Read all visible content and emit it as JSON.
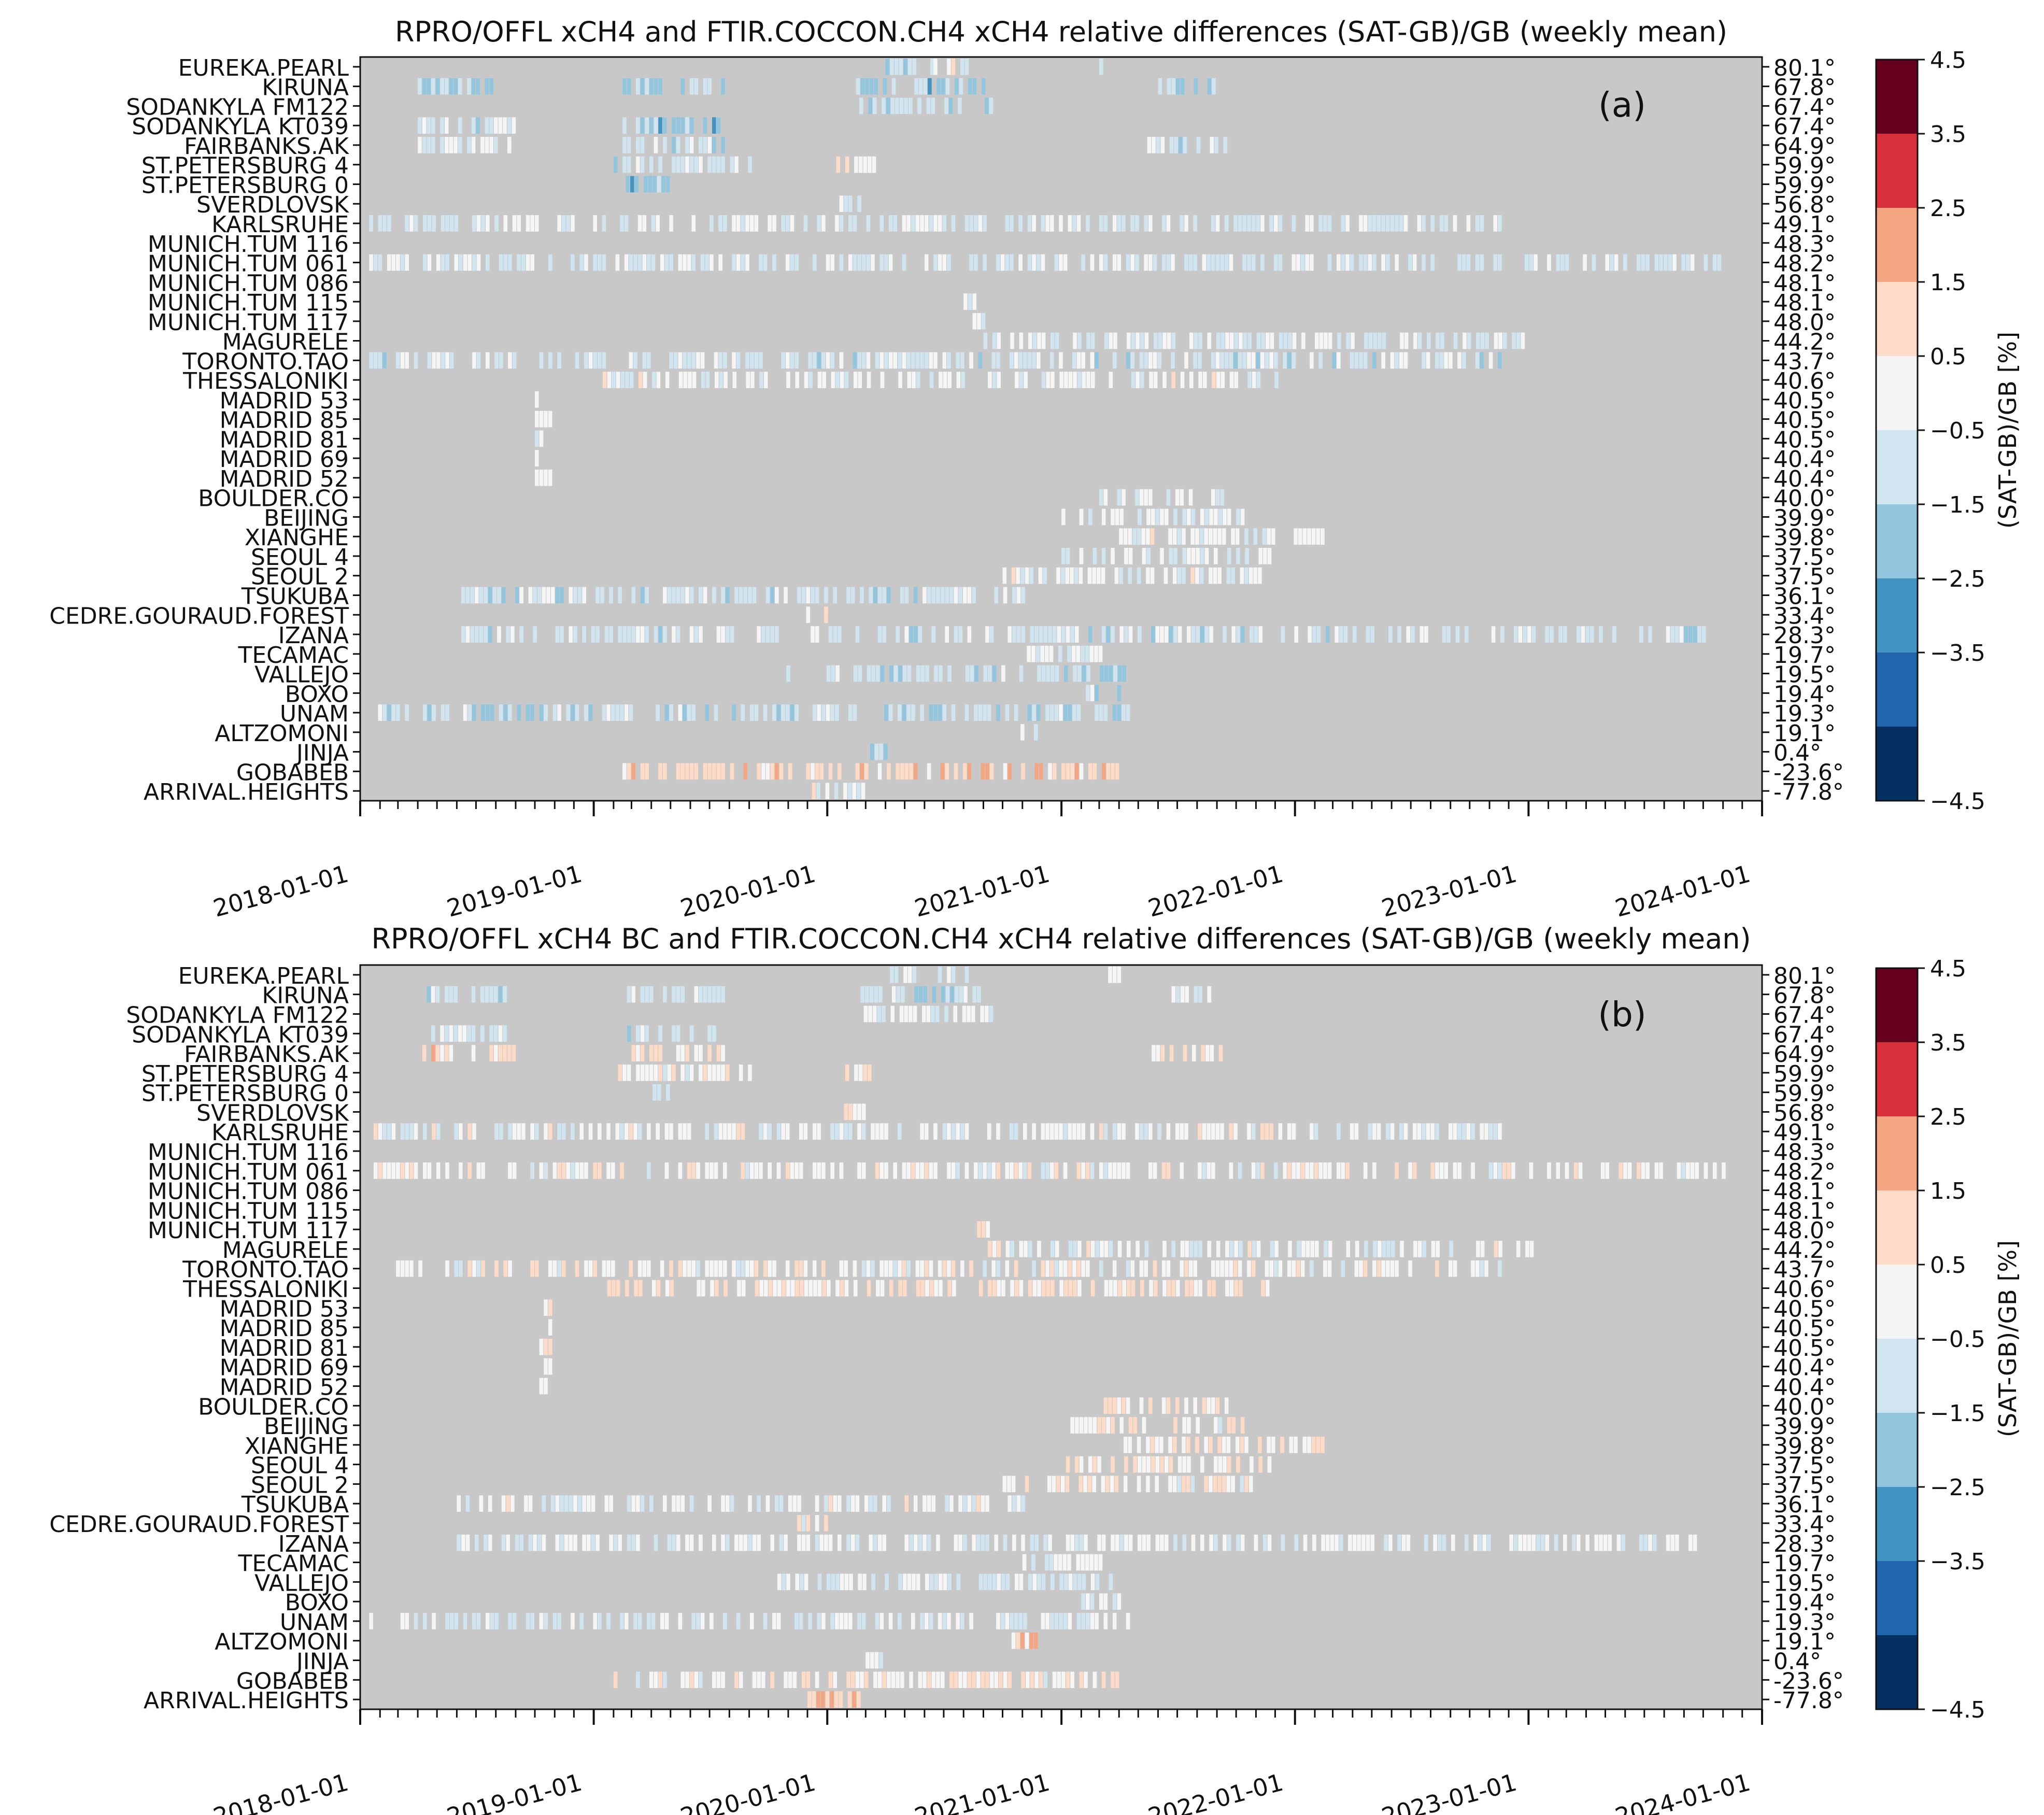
{
  "chart_data": [
    {
      "type": "heatmap",
      "title": "RPRO/OFFL xCH4 and FTIR.COCCON.CH4 xCH4 relative differences (SAT-GB)/GB (weekly mean)",
      "panel_label": "(a)",
      "x_type": "date",
      "xlim": [
        "2018-01-01",
        "2024-01-01"
      ],
      "x_tick_labels": [
        "2018-01-01",
        "2019-01-01",
        "2020-01-01",
        "2021-01-01",
        "2022-01-01",
        "2023-01-01",
        "2024-01-01"
      ],
      "colorbar": {
        "label": "(SAT-GB)/GB [%]",
        "range": [
          -4.5,
          4.5
        ],
        "ticks": [
          "4.5",
          "3.5",
          "2.5",
          "1.5",
          "0.5",
          "−0.5",
          "−1.5",
          "−2.5",
          "−3.5",
          "−4.5"
        ]
      },
      "background_color": "#c8c8c8",
      "stations": [
        {
          "name": "EUREKA.PEARL",
          "lat": "80.1°",
          "runs": [
            [
              "2020-04-01",
              "2020-06-15",
              -1.5
            ],
            [
              "2020-06-15",
              "2020-08-15",
              -0.2
            ],
            [
              "2021-03-01",
              "2021-04-01",
              -0.7
            ]
          ]
        },
        {
          "name": "KIRUNA",
          "lat": "67.8°",
          "runs": [
            [
              "2018-04-01",
              "2018-08-15",
              -1.3
            ],
            [
              "2019-02-15",
              "2019-07-20",
              -1.6
            ],
            [
              "2020-02-15",
              "2020-09-01",
              -1.9
            ],
            [
              "2021-06-01",
              "2021-08-25",
              -1.3
            ]
          ]
        },
        {
          "name": "SODANKYLA FM122",
          "lat": "67.4°",
          "runs": [
            [
              "2020-02-20",
              "2020-09-15",
              -1.4
            ]
          ]
        },
        {
          "name": "SODANKYLA KT039",
          "lat": "67.4°",
          "runs": [
            [
              "2018-04-01",
              "2018-09-01",
              -0.8
            ],
            [
              "2019-02-15",
              "2019-07-15",
              -1.9
            ]
          ]
        },
        {
          "name": "FAIRBANKS.AK",
          "lat": "64.9°",
          "runs": [
            [
              "2018-04-01",
              "2018-09-01",
              -0.4
            ],
            [
              "2019-02-15",
              "2019-07-20",
              -1.0
            ],
            [
              "2021-05-15",
              "2021-09-15",
              -0.9
            ]
          ]
        },
        {
          "name": "ST.PETERSBURG 4",
          "lat": "59.9°",
          "runs": [
            [
              "2019-02-01",
              "2019-09-01",
              -0.8
            ],
            [
              "2020-01-15",
              "2020-03-15",
              0.3
            ]
          ]
        },
        {
          "name": "ST.PETERSBURG 0",
          "lat": "59.9°",
          "runs": [
            [
              "2019-02-20",
              "2019-05-01",
              -1.8
            ]
          ]
        },
        {
          "name": "SVERDLOVSK",
          "lat": "56.8°",
          "runs": [
            [
              "2020-01-20",
              "2020-03-01",
              -0.8
            ]
          ]
        },
        {
          "name": "KARLSRUHE",
          "lat": "49.1°",
          "runs": [
            [
              "2018-01-15",
              "2022-11-15",
              -0.6
            ]
          ]
        },
        {
          "name": "MUNICH.TUM 116",
          "lat": "48.3°",
          "runs": []
        },
        {
          "name": "MUNICH.TUM 061",
          "lat": "48.2°",
          "runs": [
            [
              "2018-01-15",
              "2023-11-01",
              -0.7
            ]
          ]
        },
        {
          "name": "MUNICH.TUM 086",
          "lat": "48.1°",
          "runs": []
        },
        {
          "name": "MUNICH.TUM 115",
          "lat": "48.1°",
          "runs": [
            [
              "2020-08-01",
              "2020-08-25",
              -0.3
            ]
          ]
        },
        {
          "name": "MUNICH.TUM 117",
          "lat": "48.0°",
          "runs": [
            [
              "2020-08-15",
              "2020-09-15",
              -0.2
            ]
          ]
        },
        {
          "name": "MAGURELE",
          "lat": "44.2°",
          "runs": [
            [
              "2020-09-01",
              "2023-01-15",
              -0.6
            ]
          ]
        },
        {
          "name": "TORONTO.TAO",
          "lat": "43.7°",
          "runs": [
            [
              "2018-01-15",
              "2022-11-15",
              -0.8
            ]
          ]
        },
        {
          "name": "THESSALONIKI",
          "lat": "40.6°",
          "runs": [
            [
              "2019-01-15",
              "2021-12-01",
              -0.2
            ]
          ]
        },
        {
          "name": "MADRID 53",
          "lat": "40.5°",
          "runs": [
            [
              "2018-10-01",
              "2018-10-25",
              -0.1
            ]
          ]
        },
        {
          "name": "MADRID 85",
          "lat": "40.5°",
          "runs": [
            [
              "2018-10-01",
              "2018-10-25",
              -0.1
            ]
          ]
        },
        {
          "name": "MADRID 81",
          "lat": "40.5°",
          "runs": [
            [
              "2018-10-01",
              "2018-10-25",
              -0.1
            ]
          ]
        },
        {
          "name": "MADRID 69",
          "lat": "40.4°",
          "runs": [
            [
              "2018-10-01",
              "2018-10-25",
              -0.1
            ]
          ]
        },
        {
          "name": "MADRID 52",
          "lat": "40.4°",
          "runs": [
            [
              "2018-10-01",
              "2018-10-25",
              -0.1
            ]
          ]
        },
        {
          "name": "BOULDER.CO",
          "lat": "40.0°",
          "runs": [
            [
              "2021-03-01",
              "2021-09-15",
              -0.3
            ]
          ]
        },
        {
          "name": "BEIJING",
          "lat": "39.9°",
          "runs": [
            [
              "2021-01-01",
              "2021-10-15",
              -0.4
            ]
          ]
        },
        {
          "name": "XIANGHE",
          "lat": "39.8°",
          "runs": [
            [
              "2021-04-01",
              "2022-02-15",
              -0.1
            ]
          ]
        },
        {
          "name": "SEOUL 4",
          "lat": "37.5°",
          "runs": [
            [
              "2021-01-01",
              "2021-11-20",
              -0.3
            ]
          ]
        },
        {
          "name": "SEOUL 2",
          "lat": "37.5°",
          "runs": [
            [
              "2020-10-01",
              "2021-11-15",
              -0.2
            ]
          ]
        },
        {
          "name": "TSUKUBA",
          "lat": "36.1°",
          "runs": [
            [
              "2018-06-01",
              "2020-11-01",
              -0.9
            ]
          ]
        },
        {
          "name": "CEDRE.GOURAUD.FOREST",
          "lat": "33.4°",
          "runs": [
            [
              "2019-11-15",
              "2019-12-31",
              0.6
            ]
          ]
        },
        {
          "name": "IZANA",
          "lat": "28.3°",
          "runs": [
            [
              "2018-06-01",
              "2023-10-01",
              -0.9
            ]
          ]
        },
        {
          "name": "TECAMAC",
          "lat": "19.7°",
          "runs": [
            [
              "2020-11-01",
              "2021-03-01",
              -0.3
            ]
          ]
        },
        {
          "name": "VALLEJO",
          "lat": "19.5°",
          "runs": [
            [
              "2019-10-15",
              "2021-04-15",
              -1.1
            ]
          ]
        },
        {
          "name": "BOXO",
          "lat": "19.4°",
          "runs": [
            [
              "2021-02-01",
              "2021-04-01",
              -0.8
            ]
          ]
        },
        {
          "name": "UNAM",
          "lat": "19.3°",
          "runs": [
            [
              "2018-01-15",
              "2021-04-15",
              -1.2
            ]
          ]
        },
        {
          "name": "ALTZOMONI",
          "lat": "19.1°",
          "runs": [
            [
              "2020-10-15",
              "2020-11-20",
              -0.1
            ]
          ]
        },
        {
          "name": "JINJA",
          "lat": "0.4°",
          "runs": [
            [
              "2020-03-01",
              "2020-04-01",
              -1.8
            ]
          ]
        },
        {
          "name": "GOBABEB",
          "lat": "-23.6°",
          "runs": [
            [
              "2019-02-01",
              "2021-04-01",
              1.1
            ]
          ]
        },
        {
          "name": "ARRIVAL.HEIGHTS",
          "lat": "-77.8°",
          "runs": [
            [
              "2019-12-01",
              "2020-03-01",
              -0.1
            ]
          ]
        }
      ]
    },
    {
      "type": "heatmap",
      "title": "RPRO/OFFL xCH4 BC and FTIR.COCCON.CH4 xCH4 relative differences (SAT-GB)/GB (weekly mean)",
      "panel_label": "(b)",
      "x_type": "date",
      "xlim": [
        "2018-01-01",
        "2024-01-01"
      ],
      "x_tick_labels": [
        "2018-01-01",
        "2019-01-01",
        "2020-01-01",
        "2021-01-01",
        "2022-01-01",
        "2023-01-01",
        "2024-01-01"
      ],
      "colorbar": {
        "label": "(SAT-GB)/GB [%]",
        "range": [
          -4.5,
          4.5
        ],
        "ticks": [
          "4.5",
          "3.5",
          "2.5",
          "1.5",
          "0.5",
          "−0.5",
          "−1.5",
          "−2.5",
          "−3.5",
          "−4.5"
        ]
      },
      "background_color": "#c8c8c8",
      "stations": [
        {
          "name": "EUREKA.PEARL",
          "lat": "80.1°",
          "runs": [
            [
              "2020-04-01",
              "2020-06-15",
              -0.7
            ],
            [
              "2020-06-15",
              "2020-08-15",
              -0.1
            ],
            [
              "2021-03-01",
              "2021-04-01",
              -0.2
            ]
          ]
        },
        {
          "name": "KIRUNA",
          "lat": "67.8°",
          "runs": [
            [
              "2018-04-01",
              "2018-08-15",
              -1.0
            ],
            [
              "2019-02-15",
              "2019-07-20",
              -0.7
            ],
            [
              "2020-02-15",
              "2020-09-01",
              -1.0
            ],
            [
              "2021-06-01",
              "2021-08-25",
              -0.9
            ]
          ]
        },
        {
          "name": "SODANKYLA FM122",
          "lat": "67.4°",
          "runs": [
            [
              "2020-02-20",
              "2020-09-15",
              -0.4
            ]
          ]
        },
        {
          "name": "SODANKYLA KT039",
          "lat": "67.4°",
          "runs": [
            [
              "2018-04-01",
              "2018-09-01",
              -0.3
            ],
            [
              "2019-02-15",
              "2019-07-15",
              -0.9
            ]
          ]
        },
        {
          "name": "FAIRBANKS.AK",
          "lat": "64.9°",
          "runs": [
            [
              "2018-04-01",
              "2018-09-01",
              0.9
            ],
            [
              "2019-02-15",
              "2019-07-20",
              0.6
            ],
            [
              "2021-05-15",
              "2021-09-15",
              0.5
            ]
          ]
        },
        {
          "name": "ST.PETERSBURG 4",
          "lat": "59.9°",
          "runs": [
            [
              "2019-02-01",
              "2019-09-01",
              0.2
            ],
            [
              "2020-01-15",
              "2020-03-15",
              0.5
            ]
          ]
        },
        {
          "name": "ST.PETERSBURG 0",
          "lat": "59.9°",
          "runs": [
            [
              "2019-02-20",
              "2019-05-01",
              -0.6
            ]
          ]
        },
        {
          "name": "SVERDLOVSK",
          "lat": "56.8°",
          "runs": [
            [
              "2020-01-20",
              "2020-03-01",
              0.4
            ]
          ]
        },
        {
          "name": "KARLSRUHE",
          "lat": "49.1°",
          "runs": [
            [
              "2018-01-15",
              "2022-11-15",
              -0.2
            ]
          ]
        },
        {
          "name": "MUNICH.TUM 116",
          "lat": "48.3°",
          "runs": []
        },
        {
          "name": "MUNICH.TUM 061",
          "lat": "48.2°",
          "runs": [
            [
              "2018-01-15",
              "2023-11-01",
              0.1
            ]
          ]
        },
        {
          "name": "MUNICH.TUM 086",
          "lat": "48.1°",
          "runs": []
        },
        {
          "name": "MUNICH.TUM 115",
          "lat": "48.1°",
          "runs": [
            [
              "2020-08-01",
              "2020-08-25",
              0.3
            ]
          ]
        },
        {
          "name": "MUNICH.TUM 117",
          "lat": "48.0°",
          "runs": [
            [
              "2020-08-15",
              "2020-09-15",
              0.4
            ]
          ]
        },
        {
          "name": "MAGURELE",
          "lat": "44.2°",
          "runs": [
            [
              "2020-09-01",
              "2023-01-15",
              -0.2
            ]
          ]
        },
        {
          "name": "TORONTO.TAO",
          "lat": "43.7°",
          "runs": [
            [
              "2018-01-15",
              "2022-11-15",
              0.1
            ]
          ]
        },
        {
          "name": "THESSALONIKI",
          "lat": "40.6°",
          "runs": [
            [
              "2019-01-15",
              "2021-12-01",
              0.5
            ]
          ]
        },
        {
          "name": "MADRID 53",
          "lat": "40.5°",
          "runs": [
            [
              "2018-10-01",
              "2018-10-25",
              0.8
            ]
          ]
        },
        {
          "name": "MADRID 85",
          "lat": "40.5°",
          "runs": [
            [
              "2018-10-01",
              "2018-10-25",
              0.2
            ]
          ]
        },
        {
          "name": "MADRID 81",
          "lat": "40.5°",
          "runs": [
            [
              "2018-10-01",
              "2018-10-25",
              0.2
            ]
          ]
        },
        {
          "name": "MADRID 69",
          "lat": "40.4°",
          "runs": [
            [
              "2018-10-01",
              "2018-10-25",
              0.2
            ]
          ]
        },
        {
          "name": "MADRID 52",
          "lat": "40.4°",
          "runs": [
            [
              "2018-10-01",
              "2018-10-25",
              0.2
            ]
          ]
        },
        {
          "name": "BOULDER.CO",
          "lat": "40.0°",
          "runs": [
            [
              "2021-03-01",
              "2021-09-15",
              0.4
            ]
          ]
        },
        {
          "name": "BEIJING",
          "lat": "39.9°",
          "runs": [
            [
              "2021-01-01",
              "2021-10-15",
              0.2
            ]
          ]
        },
        {
          "name": "XIANGHE",
          "lat": "39.8°",
          "runs": [
            [
              "2021-04-01",
              "2022-02-15",
              0.4
            ]
          ]
        },
        {
          "name": "SEOUL 4",
          "lat": "37.5°",
          "runs": [
            [
              "2021-01-01",
              "2021-11-20",
              0.3
            ]
          ]
        },
        {
          "name": "SEOUL 2",
          "lat": "37.5°",
          "runs": [
            [
              "2020-10-01",
              "2021-11-15",
              0.2
            ]
          ]
        },
        {
          "name": "TSUKUBA",
          "lat": "36.1°",
          "runs": [
            [
              "2018-06-01",
              "2020-11-01",
              -0.2
            ]
          ]
        },
        {
          "name": "CEDRE.GOURAUD.FOREST",
          "lat": "33.4°",
          "runs": [
            [
              "2019-11-15",
              "2019-12-31",
              0.0
            ]
          ]
        },
        {
          "name": "IZANA",
          "lat": "28.3°",
          "runs": [
            [
              "2018-06-01",
              "2023-10-01",
              -0.3
            ]
          ]
        },
        {
          "name": "TECAMAC",
          "lat": "19.7°",
          "runs": [
            [
              "2020-11-01",
              "2021-03-01",
              -0.2
            ]
          ]
        },
        {
          "name": "VALLEJO",
          "lat": "19.5°",
          "runs": [
            [
              "2019-10-15",
              "2021-04-15",
              -0.5
            ]
          ]
        },
        {
          "name": "BOXO",
          "lat": "19.4°",
          "runs": [
            [
              "2021-02-01",
              "2021-04-01",
              -0.7
            ]
          ]
        },
        {
          "name": "UNAM",
          "lat": "19.3°",
          "runs": [
            [
              "2018-01-15",
              "2021-04-15",
              -0.6
            ]
          ]
        },
        {
          "name": "ALTZOMONI",
          "lat": "19.1°",
          "runs": [
            [
              "2020-10-15",
              "2020-11-20",
              0.9
            ]
          ]
        },
        {
          "name": "JINJA",
          "lat": "0.4°",
          "runs": [
            [
              "2020-03-01",
              "2020-04-01",
              -0.3
            ]
          ]
        },
        {
          "name": "GOBABEB",
          "lat": "-23.6°",
          "runs": [
            [
              "2019-02-01",
              "2021-04-01",
              0.2
            ]
          ]
        },
        {
          "name": "ARRIVAL.HEIGHTS",
          "lat": "-77.8°",
          "runs": [
            [
              "2019-12-01",
              "2020-03-01",
              1.2
            ]
          ]
        }
      ]
    }
  ],
  "colors": {
    "colorbar_bands_top_to_bottom": [
      "#67001f",
      "#d6303a",
      "#f4a582",
      "#fddbc7",
      "#f5f5f5",
      "#d1e5f0",
      "#92c5de",
      "#4393c3",
      "#2166ac",
      "#053061"
    ],
    "axes_background": "#c8c8c8"
  }
}
